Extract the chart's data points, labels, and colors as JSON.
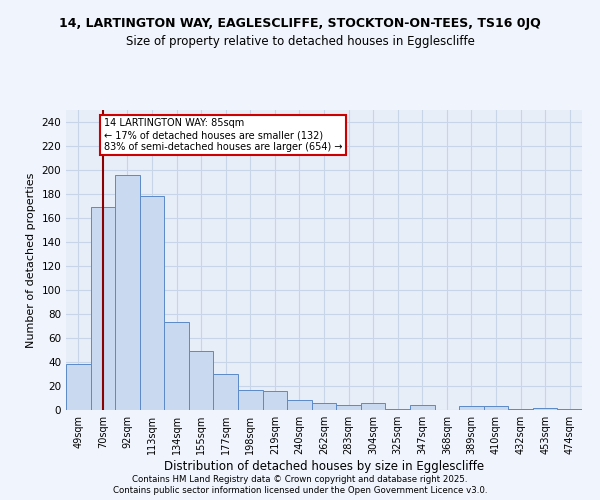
{
  "title1": "14, LARTINGTON WAY, EAGLESCLIFFE, STOCKTON-ON-TEES, TS16 0JQ",
  "title2": "Size of property relative to detached houses in Egglescliffe",
  "xlabel": "Distribution of detached houses by size in Egglescliffe",
  "ylabel": "Number of detached properties",
  "bins": [
    "49sqm",
    "70sqm",
    "92sqm",
    "113sqm",
    "134sqm",
    "155sqm",
    "177sqm",
    "198sqm",
    "219sqm",
    "240sqm",
    "262sqm",
    "283sqm",
    "304sqm",
    "325sqm",
    "347sqm",
    "368sqm",
    "389sqm",
    "410sqm",
    "432sqm",
    "453sqm",
    "474sqm"
  ],
  "values": [
    38,
    169,
    196,
    178,
    73,
    49,
    30,
    17,
    16,
    8,
    6,
    4,
    6,
    1,
    4,
    0,
    3,
    3,
    1,
    2,
    1
  ],
  "bar_color": "#c9d9f0",
  "bar_edge_color": "#5b8ac7",
  "vline_x": 1.5,
  "vline_color": "#8b0000",
  "annotation_text": "14 LARTINGTON WAY: 85sqm\n← 17% of detached houses are smaller (132)\n83% of semi-detached houses are larger (654) →",
  "annotation_box_color": "#ffffff",
  "annotation_box_edge_color": "#cc0000",
  "ylim": [
    0,
    250
  ],
  "yticks": [
    0,
    20,
    40,
    60,
    80,
    100,
    120,
    140,
    160,
    180,
    200,
    220,
    240
  ],
  "background_color": "#e8eef8",
  "grid_color": "#c8d4e8",
  "footer1": "Contains HM Land Registry data © Crown copyright and database right 2025.",
  "footer2": "Contains public sector information licensed under the Open Government Licence v3.0."
}
